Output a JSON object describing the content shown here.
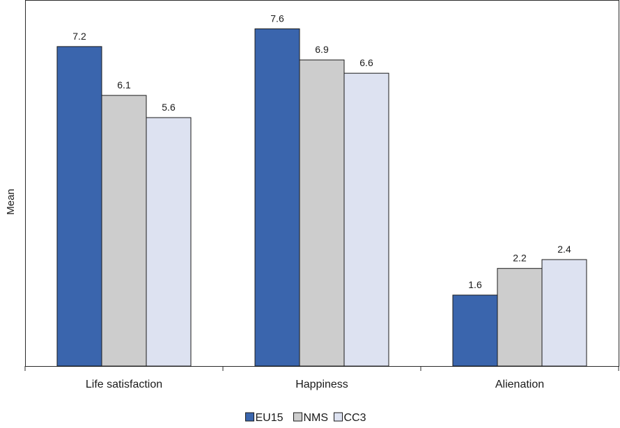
{
  "chart_data": {
    "type": "bar",
    "title": "",
    "xlabel": "",
    "ylabel": "Mean",
    "categories": [
      "Life satisfaction",
      "Happiness",
      "Alienation"
    ],
    "series": [
      {
        "name": "EU15",
        "color": "#3a65ad",
        "values": [
          7.2,
          7.6,
          1.6
        ]
      },
      {
        "name": "NMS",
        "color": "#cdcdcd",
        "values": [
          6.1,
          6.9,
          2.2
        ]
      },
      {
        "name": "CC3",
        "color": "#dde2f1",
        "values": [
          5.6,
          6.6,
          2.4
        ]
      }
    ],
    "ylim": [
      0,
      8.25
    ],
    "grid": false,
    "legend_position": "bottom-center",
    "show_data_labels": true
  }
}
